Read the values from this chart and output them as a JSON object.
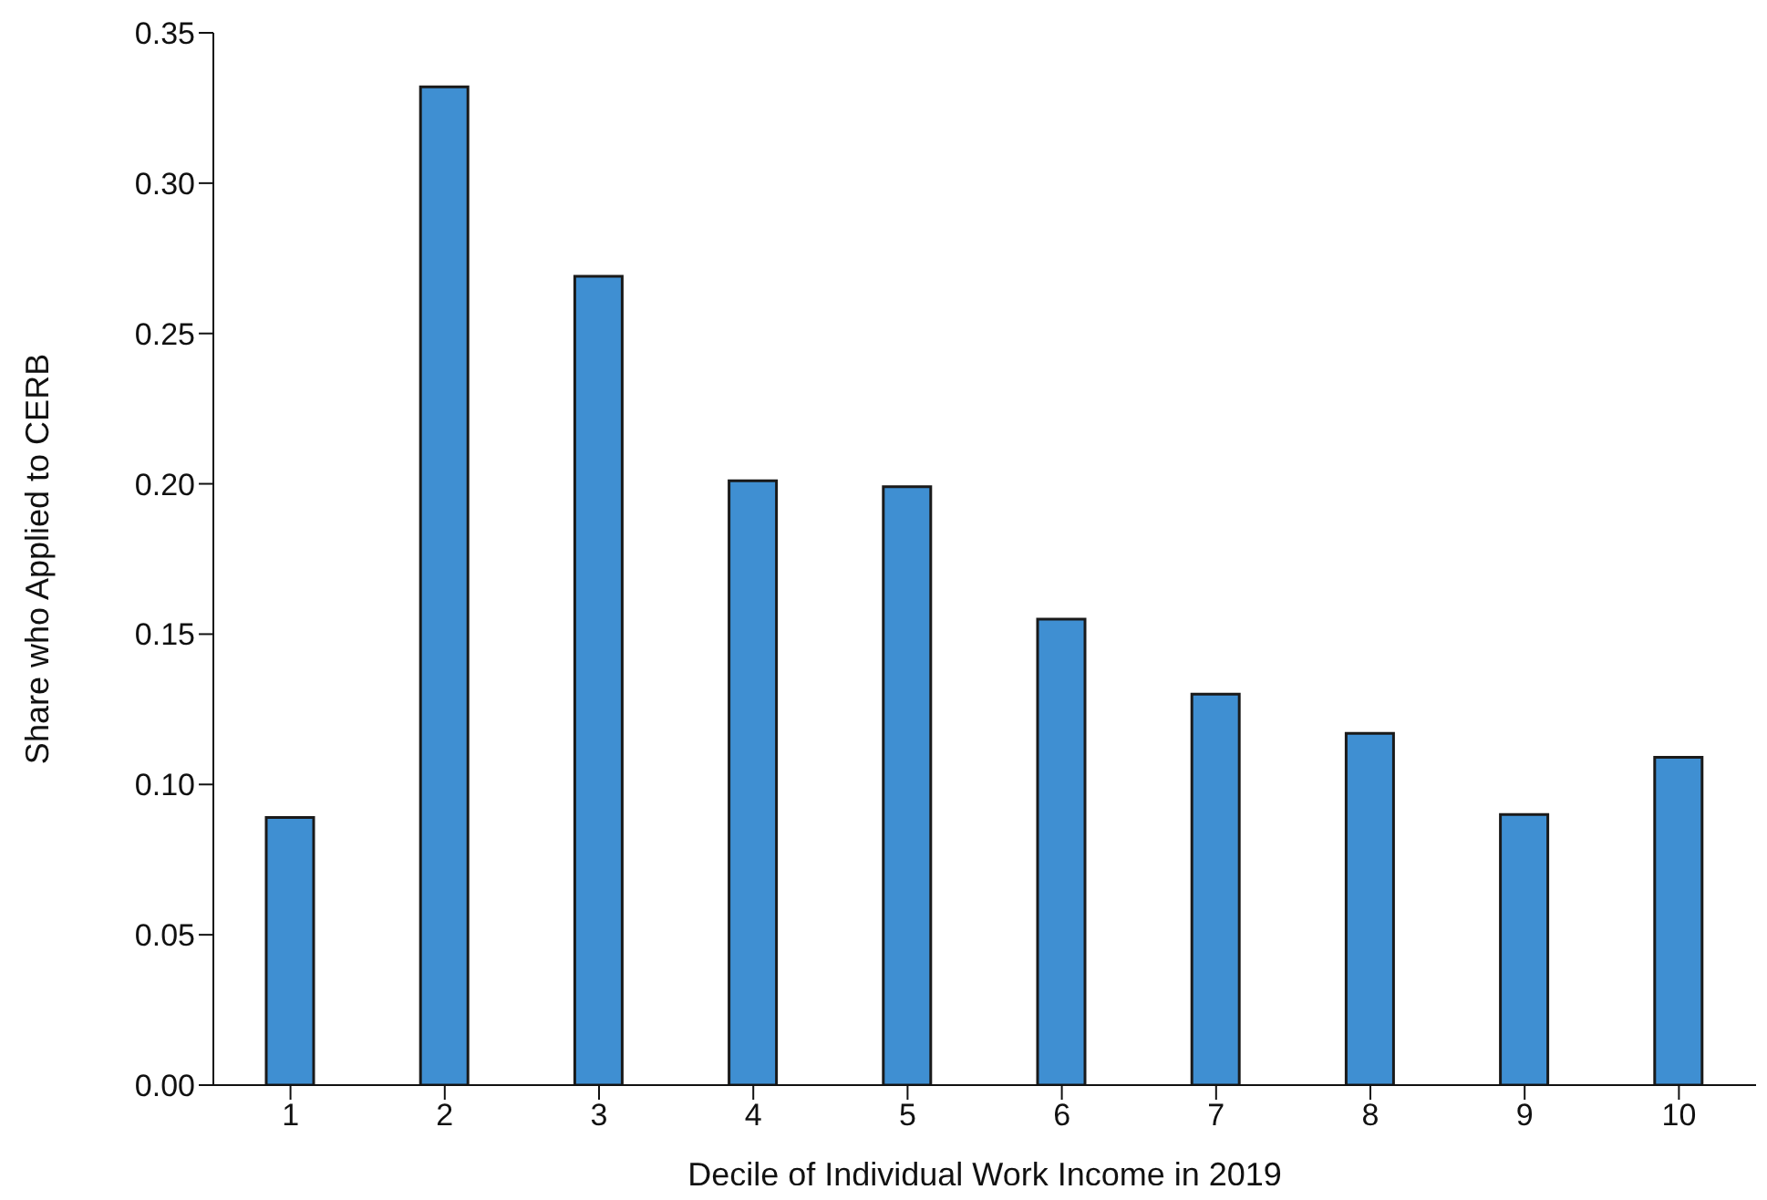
{
  "chart_data": {
    "type": "bar",
    "xlabel": "Decile of Individual Work Income in 2019",
    "ylabel": "Share who Applied to CERB",
    "categories": [
      "1",
      "2",
      "3",
      "4",
      "5",
      "6",
      "7",
      "8",
      "9",
      "10"
    ],
    "values": [
      0.089,
      0.332,
      0.269,
      0.201,
      0.199,
      0.155,
      0.13,
      0.117,
      0.09,
      0.109
    ],
    "color": "#3f8fd2",
    "ylim": [
      0,
      0.35
    ],
    "yticks": [
      {
        "value": 0,
        "label": "0.00"
      },
      {
        "value": 0.05,
        "label": "0.05"
      },
      {
        "value": 0.1,
        "label": "0.10"
      },
      {
        "value": 0.15,
        "label": "0.15"
      },
      {
        "value": 0.2,
        "label": "0.20"
      },
      {
        "value": 0.25,
        "label": "0.25"
      },
      {
        "value": 0.3,
        "label": "0.30"
      },
      {
        "value": 0.35,
        "label": "0.35"
      }
    ],
    "grid": false,
    "legend": false
  }
}
